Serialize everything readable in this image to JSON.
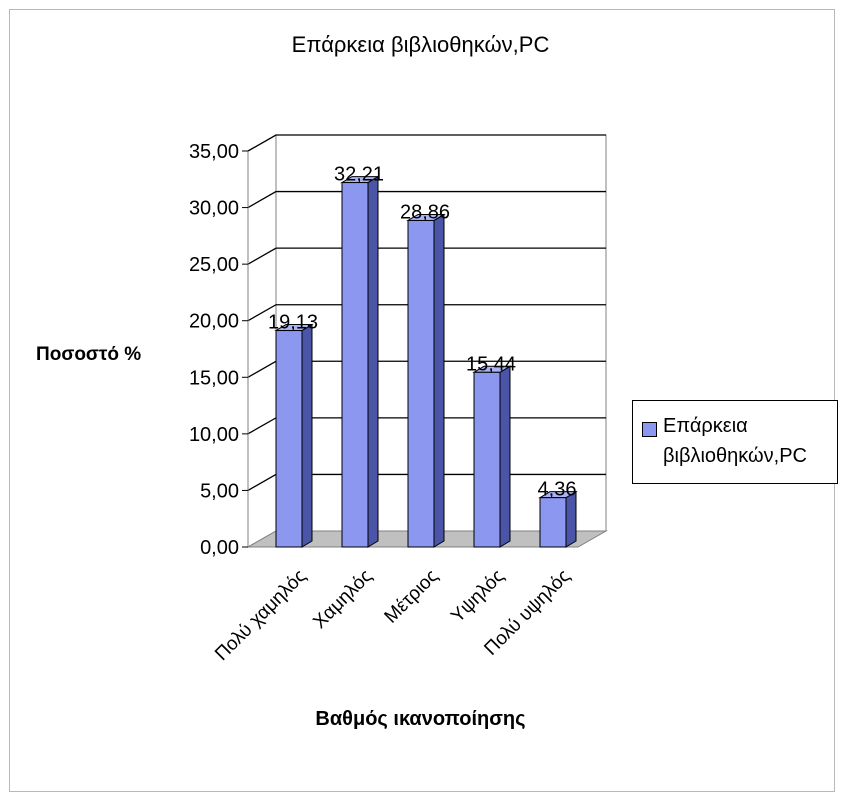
{
  "chart_data": {
    "type": "bar",
    "title": "Επάρκεια βιβλιοθηκών,PC",
    "xlabel": "Βαθμός ικανοποίησης",
    "ylabel": "Ποσοστό %",
    "categories": [
      "Πολύ χαμηλός",
      "Χαμηλός",
      "Μέτριος",
      "Υψηλός",
      "Πολύ υψηλός"
    ],
    "series": [
      {
        "name": "Επάρκεια βιβλιοθηκών,PC",
        "values": [
          19.13,
          32.21,
          28.86,
          15.44,
          4.36
        ],
        "labels": [
          "19,13",
          "32,21",
          "28,86",
          "15,44",
          "4,36"
        ]
      }
    ],
    "ylim": [
      0,
      35
    ],
    "yticks": [
      0,
      5,
      10,
      15,
      20,
      25,
      30,
      35
    ],
    "ytick_labels": [
      "0,00",
      "5,00",
      "10,00",
      "15,00",
      "20,00",
      "25,00",
      "30,00",
      "35,00"
    ],
    "grid": true,
    "legend_position": "right",
    "style": "3d-column",
    "colors": {
      "bar_front": "#8c98f0",
      "bar_side": "#4a55a8",
      "bar_top": "#aab3f6",
      "outline": "#000000",
      "gridline": "#000000",
      "wall": "#ffffff",
      "floor": "#c0c0c0"
    }
  }
}
